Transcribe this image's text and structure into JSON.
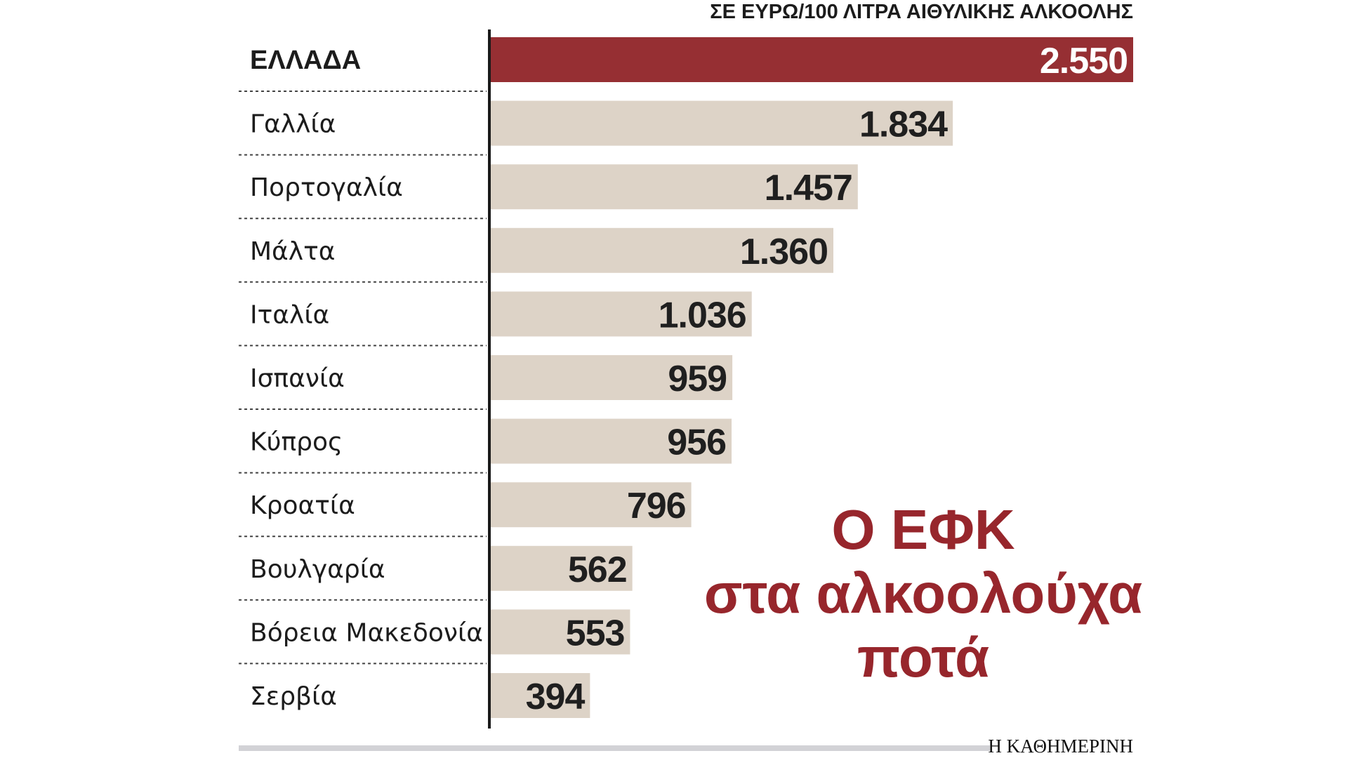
{
  "chart_data": {
    "type": "bar",
    "orientation": "horizontal",
    "unit_label": "ΣΕ ΕΥΡΩ/100 ΛΙΤΡΑ ΑΙΘΥΛΙΚΗΣ ΑΛΚΟΟΛΗΣ",
    "categories": [
      "ΕΛΛΑΔΑ",
      "Γαλλία",
      "Πορτογαλία",
      "Μάλτα",
      "Ιταλία",
      "Ισπανία",
      "Κύπρος",
      "Κροατία",
      "Βουλγαρία",
      "Βόρεια Μακεδονία",
      "Σερβία"
    ],
    "values": [
      2550,
      1834,
      1457,
      1360,
      1036,
      959,
      956,
      796,
      562,
      553,
      394
    ],
    "value_labels": [
      "2.550",
      "1.834",
      "1.457",
      "1.360",
      "1.036",
      "959",
      "956",
      "796",
      "562",
      "553",
      "394"
    ],
    "highlight_index": 0,
    "xlim": [
      0,
      2550
    ],
    "grid": false,
    "colors": {
      "highlight": "#962f33",
      "bar": "#ddd3c7",
      "axis": "#1a1a1a",
      "headline": "#97262c",
      "source_bar": "#d2d2d6"
    }
  },
  "headline": {
    "lines": [
      "Ο ΕΦΚ",
      "στα αλκοολούχα",
      "ποτά"
    ]
  },
  "source": "Η ΚΑΘΗΜΕΡΙΝΗ"
}
